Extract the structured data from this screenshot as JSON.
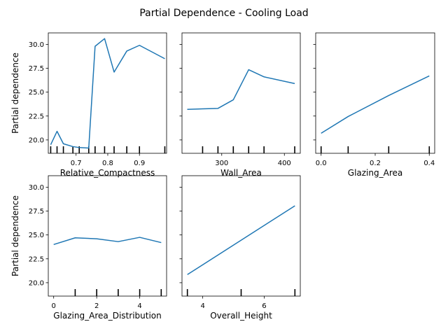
{
  "suptitle": "Partial Dependence - Cooling Load",
  "shared_ylabel": "Partial dependence",
  "line_color": "#1f77b4",
  "chart_data": [
    {
      "type": "line",
      "xlabel": "Relative_Compactness",
      "ylabel": "Partial dependence",
      "xlim": [
        0.6124,
        0.9856
      ],
      "ylim": [
        18.6,
        31.2
      ],
      "xticks": [
        0.7,
        0.8,
        0.9
      ],
      "xtick_labels": [
        "0.7",
        "0.8",
        "0.9"
      ],
      "yticks": [
        20.0,
        22.5,
        25.0,
        27.5,
        30.0
      ],
      "ytick_labels": [
        "20.0",
        "22.5",
        "25.0",
        "27.5",
        "30.0"
      ],
      "x": [
        0.62,
        0.64,
        0.66,
        0.69,
        0.71,
        0.74,
        0.76,
        0.79,
        0.82,
        0.86,
        0.9,
        0.98
      ],
      "y": [
        19.5,
        20.9,
        19.6,
        19.3,
        19.2,
        19.15,
        29.8,
        30.6,
        27.1,
        29.3,
        29.9,
        28.5
      ],
      "rug": [
        0.62,
        0.64,
        0.66,
        0.69,
        0.71,
        0.74,
        0.76,
        0.79,
        0.82,
        0.86,
        0.9,
        0.98
      ]
    },
    {
      "type": "line",
      "xlabel": "Wall_Area",
      "ylabel": "",
      "xlim": [
        236.6,
        425.4
      ],
      "ylim": [
        18.6,
        31.2
      ],
      "xticks": [
        300,
        400
      ],
      "xtick_labels": [
        "300",
        "400"
      ],
      "yticks": [
        20.0,
        22.5,
        25.0,
        27.5,
        30.0
      ],
      "ytick_labels": [],
      "x": [
        245,
        269.5,
        294,
        318.5,
        343,
        367.5,
        416.5
      ],
      "y": [
        23.2,
        23.25,
        23.3,
        24.2,
        27.35,
        26.6,
        25.9
      ],
      "rug": [
        269.5,
        294,
        318.5,
        343,
        367.5,
        416.5
      ]
    },
    {
      "type": "line",
      "xlabel": "Glazing_Area",
      "ylabel": "",
      "xlim": [
        -0.02,
        0.42
      ],
      "ylim": [
        18.6,
        31.2
      ],
      "xticks": [
        0.0,
        0.2,
        0.4
      ],
      "xtick_labels": [
        "0.0",
        "0.2",
        "0.4"
      ],
      "yticks": [
        20.0,
        22.5,
        25.0,
        27.5,
        30.0
      ],
      "ytick_labels": [],
      "x": [
        0.0,
        0.1,
        0.25,
        0.4
      ],
      "y": [
        20.7,
        22.45,
        24.65,
        26.7
      ],
      "rug": [
        0.0,
        0.1,
        0.25,
        0.4
      ]
    },
    {
      "type": "line",
      "xlabel": "Glazing_Area_Distribution",
      "ylabel": "Partial dependence",
      "xlim": [
        -0.25,
        5.25
      ],
      "ylim": [
        18.6,
        31.2
      ],
      "xticks": [
        0,
        2,
        4
      ],
      "xtick_labels": [
        "0",
        "2",
        "4"
      ],
      "yticks": [
        20.0,
        22.5,
        25.0,
        27.5,
        30.0
      ],
      "ytick_labels": [
        "20.0",
        "22.5",
        "25.0",
        "27.5",
        "30.0"
      ],
      "x": [
        0,
        1,
        2,
        3,
        4,
        5
      ],
      "y": [
        24.0,
        24.7,
        24.6,
        24.3,
        24.75,
        24.2
      ],
      "rug": [
        1,
        2,
        3,
        4,
        5
      ]
    },
    {
      "type": "line",
      "xlabel": "Overall_Height",
      "ylabel": "",
      "xlim": [
        3.325,
        7.175
      ],
      "ylim": [
        18.6,
        31.2
      ],
      "xticks": [
        4,
        6
      ],
      "xtick_labels": [
        "4",
        "6"
      ],
      "yticks": [
        20.0,
        22.5,
        25.0,
        27.5,
        30.0
      ],
      "ytick_labels": [],
      "x": [
        3.5,
        7.0
      ],
      "y": [
        20.85,
        28.05
      ],
      "rug": [
        3.5,
        5.25,
        7.0
      ]
    }
  ]
}
